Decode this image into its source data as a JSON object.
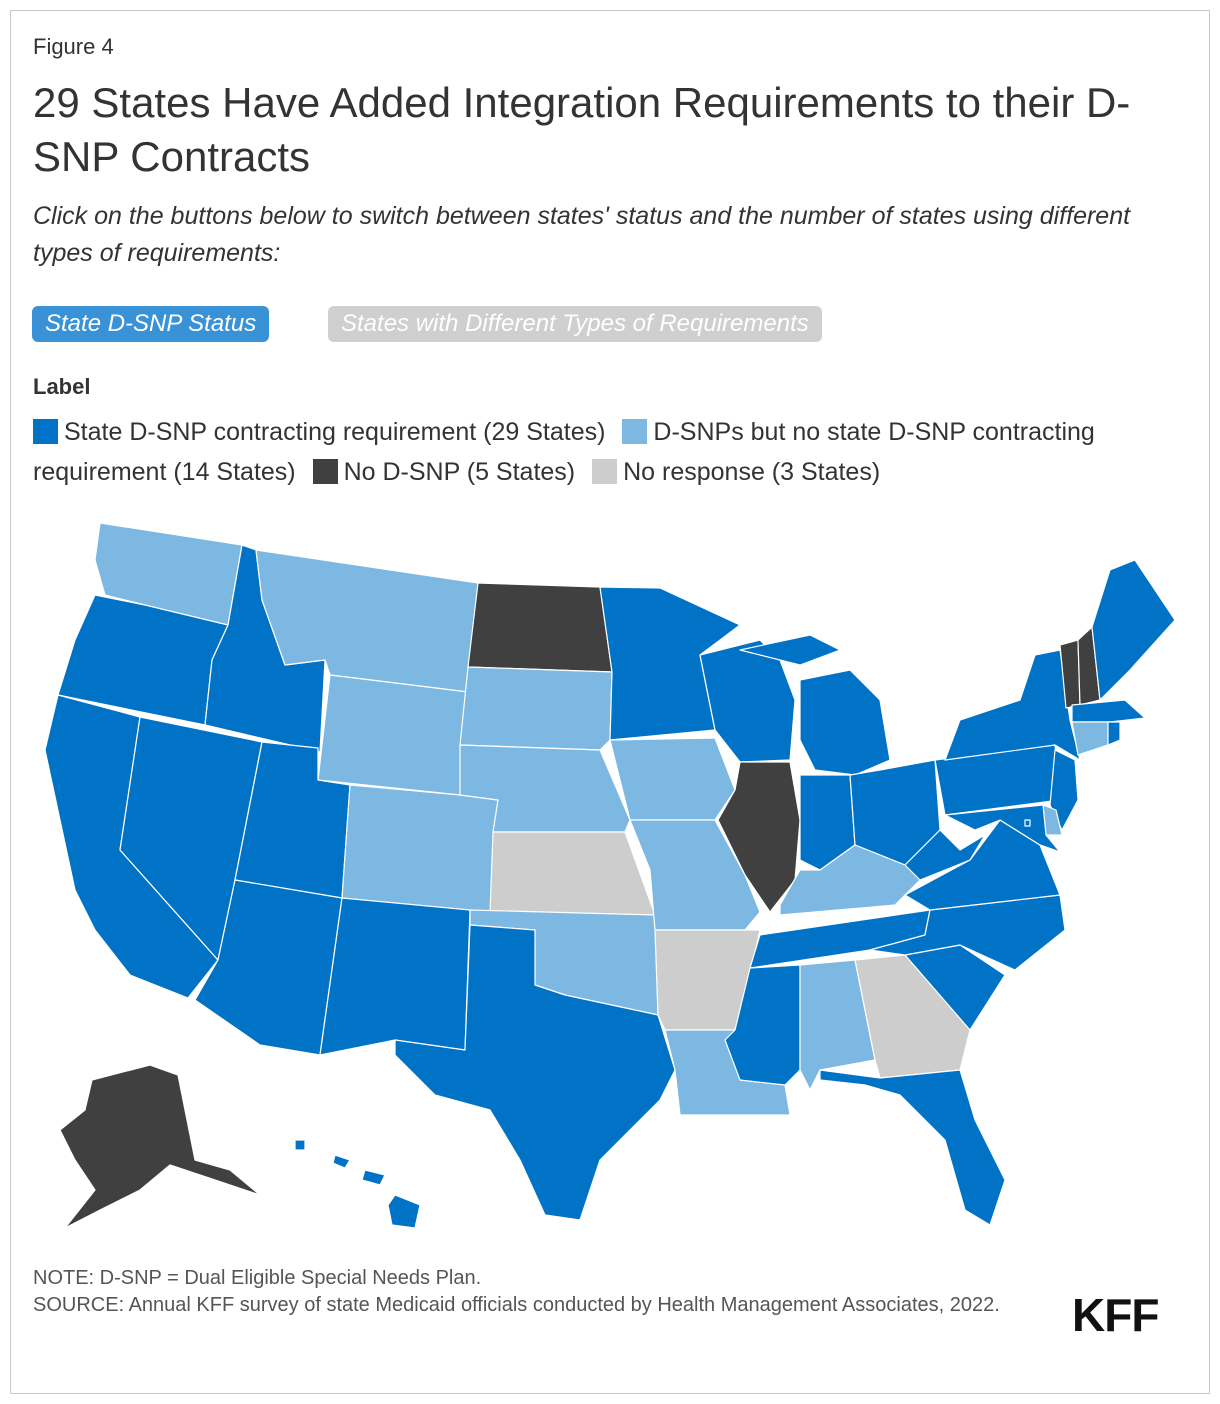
{
  "figure_label": "Figure 4",
  "title": "29 States Have Added Integration Requirements to their D-SNP Contracts",
  "subtitle": "Click on the buttons below to switch between states' status and the number of states using different types of requirements:",
  "buttons": [
    {
      "label": "State D-SNP Status",
      "active": true
    },
    {
      "label": "States with Different Types of Requirements",
      "active": false
    }
  ],
  "legend": {
    "title": "Label",
    "items": [
      {
        "key": "req",
        "label": "State D-SNP contracting requirement (29 States)",
        "color": "#0073c7"
      },
      {
        "key": "dsnp",
        "label": "D-SNPs but no state D-SNP contracting requirement (14 States)",
        "color": "#7cb8e1"
      },
      {
        "key": "none",
        "label": "No D-SNP (5 States)",
        "color": "#404040"
      },
      {
        "key": "nr",
        "label": "No response (3 States)",
        "color": "#cdcdcd"
      }
    ]
  },
  "map_data": {
    "category_by_state": {
      "WA": "dsnp",
      "OR": "req",
      "CA": "req",
      "ID": "req",
      "NV": "req",
      "MT": "dsnp",
      "WY": "dsnp",
      "UT": "req",
      "AZ": "req",
      "CO": "dsnp",
      "NM": "req",
      "ND": "none",
      "SD": "dsnp",
      "NE": "dsnp",
      "KS": "nr",
      "OK": "dsnp",
      "TX": "req",
      "MN": "req",
      "IA": "dsnp",
      "MO": "dsnp",
      "AR": "nr",
      "LA": "dsnp",
      "WI": "req",
      "IL": "none",
      "MI": "req",
      "IN": "req",
      "OH": "req",
      "KY": "dsnp",
      "TN": "req",
      "MS": "req",
      "AL": "dsnp",
      "GA": "nr",
      "FL": "req",
      "SC": "req",
      "NC": "req",
      "VA": "req",
      "WV": "req",
      "PA": "req",
      "NY": "req",
      "VT": "none",
      "NH": "none",
      "ME": "req",
      "MA": "req",
      "CT": "dsnp",
      "RI": "req",
      "NJ": "req",
      "DE": "dsnp",
      "MD": "req",
      "DC": "req",
      "AK": "none",
      "HI": "req"
    }
  },
  "note": "NOTE: D-SNP = Dual Eligible Special Needs Plan.",
  "source": "SOURCE: Annual KFF survey of state Medicaid officials conducted by Health Management Associates, 2022.",
  "logo": "KFF"
}
